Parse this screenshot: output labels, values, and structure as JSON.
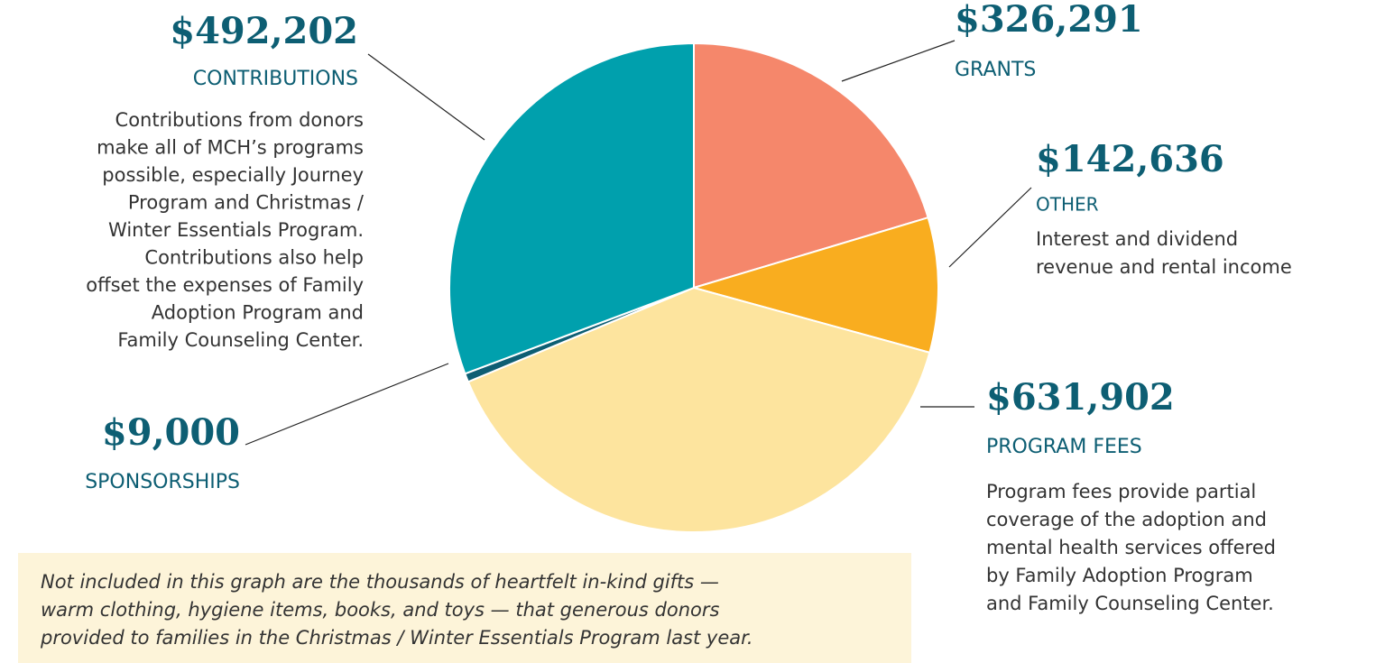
{
  "chart_data": {
    "type": "pie",
    "categories": [
      "GRANTS",
      "OTHER",
      "PROGRAM FEES",
      "SPONSORSHIPS",
      "CONTRIBUTIONS"
    ],
    "values": [
      326291,
      142636,
      631902,
      9000,
      492202
    ],
    "value_labels": [
      "$326,291",
      "$142,636",
      "$631,902",
      "$9,000",
      "$492,202"
    ],
    "colors": [
      "#f5876b",
      "#f9ad1f",
      "#fde49e",
      "#0d5e73",
      "#00a0ad"
    ],
    "descriptions": [
      null,
      [
        "Interest and dividend",
        "revenue and rental income"
      ],
      [
        "Program fees provide partial",
        "coverage of the adoption and",
        "mental health services offered",
        "by Family Adoption Program",
        "and Family Counseling Center."
      ],
      null,
      [
        "Contributions from donors",
        "make all of MCH’s programs",
        "possible, especially Journey",
        "Program and Christmas /",
        "Winter Essentials Program.",
        "Contributions also help",
        "offset the expenses of Family",
        "Adoption Program and",
        "Family Counseling Center."
      ]
    ],
    "note": [
      "Not included in this graph are the thousands of heartfelt in-kind gifts —",
      "warm clothing, hygiene items, books, and toys — that generous donors",
      "provided to families in the Christmas / Winter Essentials Program last year."
    ]
  }
}
